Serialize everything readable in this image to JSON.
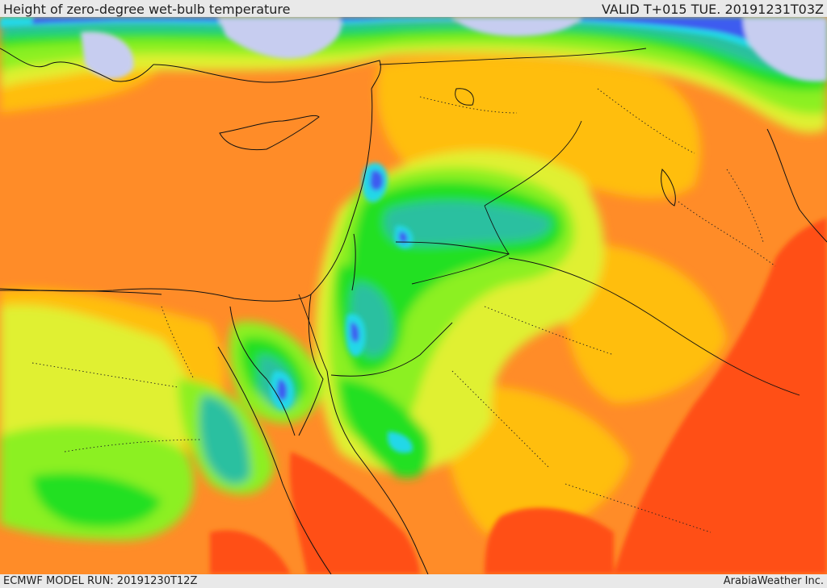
{
  "header": {
    "title": "Height of zero-degree wet-bulb temperature",
    "valid": "VALID T+015 TUE. 20191231T03Z"
  },
  "footer": {
    "model_run": "ECMWF MODEL RUN: 20191230T12Z",
    "credit": "ArabiaWeather Inc."
  },
  "palette": {
    "lowest": "#c7cdf0",
    "blue": "#3c5cf0",
    "cyan": "#20d8e8",
    "teal": "#2cc0a0",
    "green": "#20e020",
    "light_green": "#8cf020",
    "yellow_green": "#e0f030",
    "gold": "#ffbe10",
    "orange": "#ff8c28",
    "red_orange": "#ff5018",
    "borders": "#111111"
  }
}
